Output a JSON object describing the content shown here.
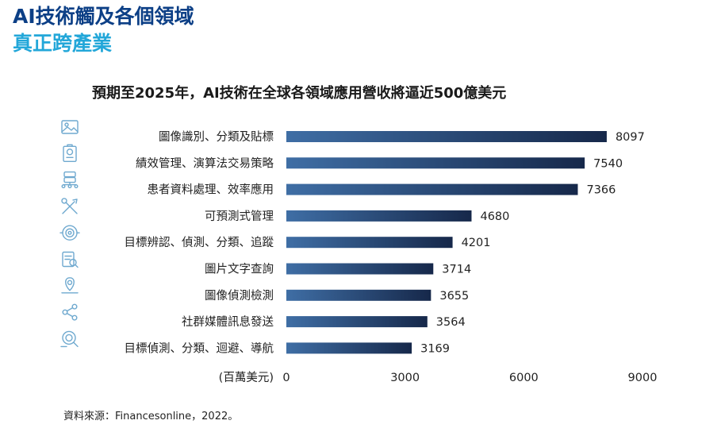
{
  "header": {
    "title_line1": "AI技術觸及各個領域",
    "title_line2": "真正跨產業"
  },
  "footer": {
    "source": "資料來源：Financesonline，2022。"
  },
  "colors": {
    "title_dark": "#0c3f86",
    "title_light": "#23a7d9",
    "bar_start": "#3f6ea5",
    "bar_end": "#16284a",
    "icon": "#6fa9cf"
  },
  "chart_data": {
    "type": "bar",
    "orientation": "horizontal",
    "title": "預期至2025年，AI技術在全球各領域應用營收將逼近500億美元",
    "xlabel": "(百萬美元)",
    "xlim": [
      0,
      9000
    ],
    "xticks": [
      "0",
      "3000",
      "6000",
      "9000"
    ],
    "grid": false,
    "categories": [
      "圖像識別、分類及貼標",
      "績效管理、演算法交易策略",
      "患者資料處理、效率應用",
      "可預測式管理",
      "目標辨認、偵測、分類、追蹤",
      "圖片文字查詢",
      "圖像偵測檢測",
      "社群媒體訊息發送",
      "目標偵測、分類、迴避、導航"
    ],
    "values": [
      8097,
      7540,
      7366,
      4680,
      4201,
      3714,
      3655,
      3564,
      3169
    ],
    "icons": [
      "image-icon",
      "clipboard-chart-icon",
      "server-network-icon",
      "tools-icon",
      "target-eye-icon",
      "document-search-icon",
      "location-pin-icon",
      "share-icon",
      "target-search-icon"
    ]
  }
}
